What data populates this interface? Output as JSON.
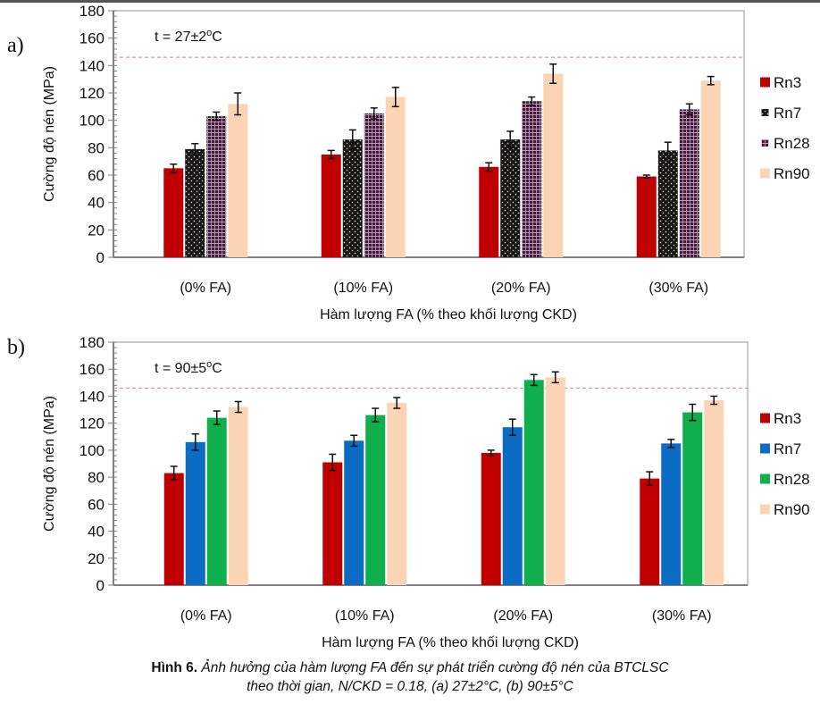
{
  "figure": {
    "caption_label": "Hình 6.",
    "caption_line1": "Ảnh hưởng của hàm lượng FA đến sự phát triển cường độ nén của BTCLSC",
    "caption_line2": "theo thời gian, N/CKD = 0.18, (a) 27±2°C, (b) 90±5°C"
  },
  "chart_data": [
    {
      "type": "bar",
      "panel": "a)",
      "annotation": "t = 27±2°C",
      "title": "",
      "xlabel": "Hàm lượng FA (% theo khối lượng CKD)",
      "ylabel": "Cường độ nén (MPa)",
      "ylim": [
        0,
        180
      ],
      "yticks": [
        0,
        20,
        40,
        60,
        80,
        100,
        120,
        140,
        160,
        180
      ],
      "reference_line": 146,
      "grid": false,
      "legend_position": "right",
      "categories": [
        "(0% FA)",
        "(10% FA)",
        "(20% FA)",
        "(30% FA)"
      ],
      "series": [
        {
          "name": "Rn3",
          "color": "#c00000",
          "pattern": "solid",
          "values": [
            65,
            75,
            66,
            59
          ],
          "errors": [
            3,
            3,
            3,
            1
          ]
        },
        {
          "name": "Rn7",
          "color": "#1a1a1a",
          "pattern": "dots",
          "values": [
            79,
            86,
            86,
            78
          ],
          "errors": [
            4,
            7,
            6,
            6
          ]
        },
        {
          "name": "Rn28",
          "color": "#4a2a44",
          "pattern": "grid",
          "values": [
            103,
            105,
            114,
            108
          ],
          "errors": [
            3,
            4,
            3,
            4
          ]
        },
        {
          "name": "Rn90",
          "color": "#fad4b4",
          "pattern": "solid",
          "values": [
            112,
            117,
            134,
            129
          ],
          "errors": [
            8,
            7,
            7,
            3
          ]
        }
      ]
    },
    {
      "type": "bar",
      "panel": "b)",
      "annotation": "t = 90±5°C",
      "title": "",
      "xlabel": "Hàm lượng FA (% theo khối lượng CKD)",
      "ylabel": "Cường độ nén (MPa)",
      "ylim": [
        0,
        180
      ],
      "yticks": [
        0,
        20,
        40,
        60,
        80,
        100,
        120,
        140,
        160,
        180
      ],
      "reference_line": 146,
      "grid": false,
      "legend_position": "right",
      "categories": [
        "(0% FA)",
        "(10% FA)",
        "(20% FA)",
        "(30% FA)"
      ],
      "series": [
        {
          "name": "Rn3",
          "color": "#c00000",
          "pattern": "solid",
          "values": [
            83,
            91,
            98,
            79
          ],
          "errors": [
            5,
            6,
            2,
            5
          ]
        },
        {
          "name": "Rn7",
          "color": "#0c6cc4",
          "pattern": "solid",
          "values": [
            106,
            107,
            117,
            105
          ],
          "errors": [
            6,
            4,
            6,
            3
          ]
        },
        {
          "name": "Rn28",
          "color": "#0fb04c",
          "pattern": "solid",
          "values": [
            124,
            126,
            152,
            128
          ],
          "errors": [
            5,
            5,
            4,
            6
          ]
        },
        {
          "name": "Rn90",
          "color": "#fad4b4",
          "pattern": "solid",
          "values": [
            132,
            135,
            154,
            137
          ],
          "errors": [
            4,
            4,
            4,
            3
          ]
        }
      ]
    }
  ]
}
